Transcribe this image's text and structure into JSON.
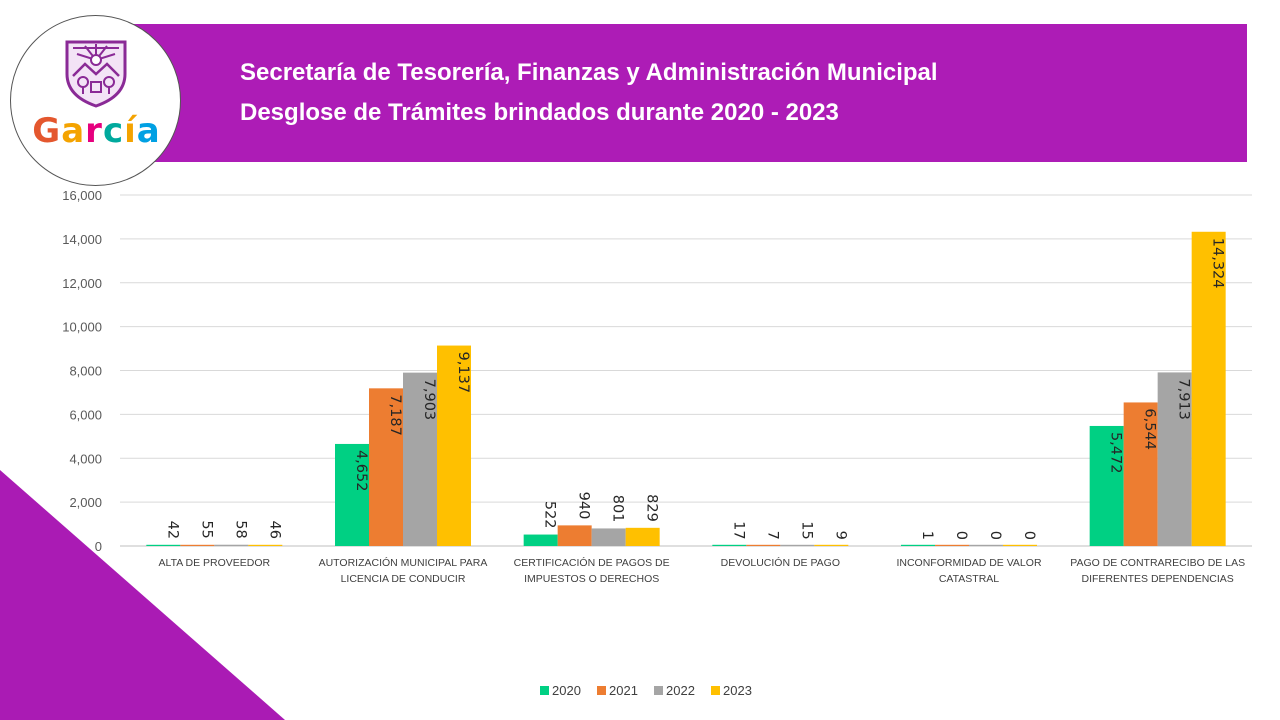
{
  "header": {
    "title_line_1": "Secretaría de Tesorería, Finanzas y Administración Municipal",
    "title_line_2": "Desglose de Trámites brindados durante 2020 - 2023",
    "logo_text": "García",
    "logo_letter_colors": [
      "#e4572e",
      "#f4a300",
      "#e6007e",
      "#00a99d",
      "#f4a300",
      "#00a0e3"
    ],
    "banner_color": "#ad1cb6"
  },
  "chart_data": {
    "type": "bar",
    "categories": [
      [
        "ALTA DE PROVEEDOR"
      ],
      [
        "AUTORIZACIÓN MUNICIPAL PARA",
        "LICENCIA DE CONDUCIR"
      ],
      [
        "CERTIFICACIÓN DE PAGOS DE",
        "IMPUESTOS O DERECHOS"
      ],
      [
        "DEVOLUCIÓN DE PAGO"
      ],
      [
        "INCONFORMIDAD DE VALOR",
        "CATASTRAL"
      ],
      [
        "PAGO DE CONTRARECIBO DE LAS",
        "DIFERENTES DEPENDENCIAS"
      ]
    ],
    "series": [
      {
        "name": "2020",
        "color": "#00d083",
        "values": [
          42,
          4652,
          522,
          17,
          1,
          5472
        ]
      },
      {
        "name": "2021",
        "color": "#ed7d31",
        "values": [
          55,
          7187,
          940,
          7,
          0,
          6544
        ]
      },
      {
        "name": "2022",
        "color": "#a5a5a5",
        "values": [
          58,
          7903,
          801,
          15,
          0,
          7913
        ]
      },
      {
        "name": "2023",
        "color": "#ffc000",
        "values": [
          46,
          9137,
          829,
          9,
          0,
          14324
        ]
      }
    ],
    "ylim": [
      0,
      16000
    ],
    "yticks": [
      0,
      2000,
      4000,
      6000,
      8000,
      10000,
      12000,
      14000,
      16000
    ],
    "grid": true,
    "legend": "bottom"
  }
}
